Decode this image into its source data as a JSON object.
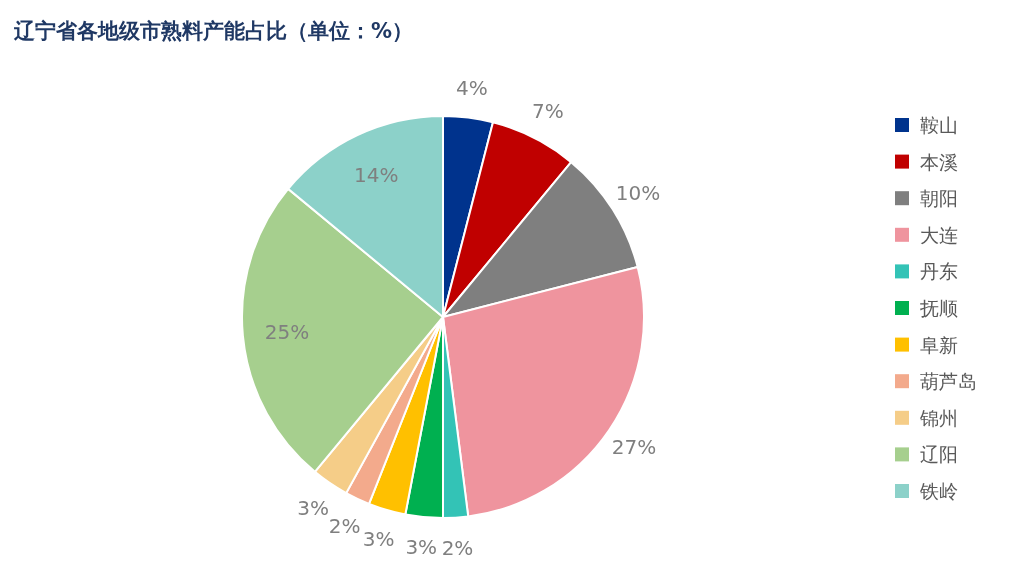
{
  "chart_data": {
    "type": "pie",
    "title": "辽宁省各地级市熟料产能占比（单位：%）",
    "categories": [
      "鞍山",
      "本溪",
      "朝阳",
      "大连",
      "丹东",
      "抚顺",
      "阜新",
      "葫芦岛",
      "锦州",
      "辽阳",
      "铁岭"
    ],
    "values": [
      4,
      7,
      10,
      27,
      2,
      3,
      3,
      2,
      3,
      25,
      14
    ],
    "colors": [
      "#00338d",
      "#c00000",
      "#7f7f7f",
      "#ef949e",
      "#33c3b6",
      "#00b050",
      "#ffc000",
      "#f3aa8c",
      "#f5cd88",
      "#a6cf8e",
      "#8cd1c9"
    ],
    "value_labels": [
      "4%",
      "7%",
      "10%",
      "27%",
      "2%",
      "3%",
      "3%",
      "2%",
      "3%",
      "25%",
      "14%"
    ],
    "legend": "right"
  }
}
